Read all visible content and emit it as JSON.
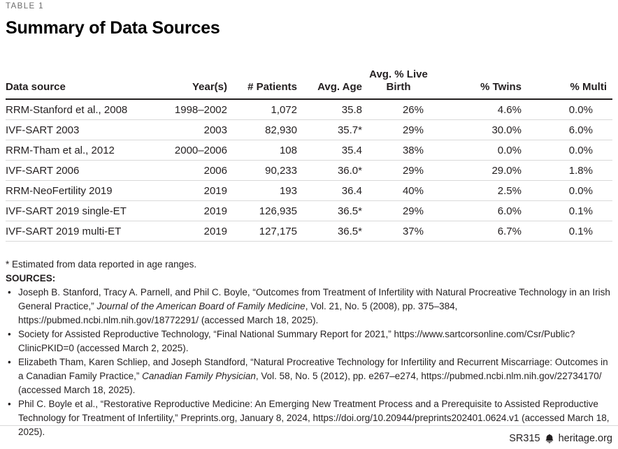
{
  "page": {
    "table_label": "TABLE 1",
    "title": "Summary of Data Sources"
  },
  "table": {
    "columns": [
      {
        "key": "data-source",
        "label": "Data source",
        "align": "left"
      },
      {
        "key": "years",
        "label": "Year(s)",
        "align": "right"
      },
      {
        "key": "patients",
        "label": "# Patients",
        "align": "right"
      },
      {
        "key": "avg-age",
        "label": "Avg. Age",
        "align": "right"
      },
      {
        "key": "avg-live-birth",
        "label": "Avg. % Live Birth",
        "lines": [
          "Avg. % Live",
          "Birth"
        ],
        "align": "center"
      },
      {
        "key": "twins",
        "label": "% Twins",
        "align": "right"
      },
      {
        "key": "multi",
        "label": "% Multi",
        "align": "right"
      }
    ],
    "rows": [
      [
        "RRM-Stanford et al., 2008",
        "1998–2002",
        "1,072",
        "35.8",
        "26%",
        "4.6%",
        "0.0%"
      ],
      [
        "IVF-SART 2003",
        "2003",
        "82,930",
        "35.7*",
        "29%",
        "30.0%",
        "6.0%"
      ],
      [
        "RRM-Tham et al., 2012",
        "2000–2006",
        "108",
        "35.4",
        "38%",
        "0.0%",
        "0.0%"
      ],
      [
        "IVF-SART 2006",
        "2006",
        "90,233",
        "36.0*",
        "29%",
        "29.0%",
        "1.8%"
      ],
      [
        "RRM-NeoFertility 2019",
        "2019",
        "193",
        "36.4",
        "40%",
        "2.5%",
        "0.0%"
      ],
      [
        "IVF-SART 2019 single-ET",
        "2019",
        "126,935",
        "36.5*",
        "29%",
        "6.0%",
        "0.1%"
      ],
      [
        "IVF-SART 2019 multi-ET",
        "2019",
        "127,175",
        "36.5*",
        "37%",
        "6.7%",
        "0.1%"
      ]
    ]
  },
  "chart_data": {
    "type": "table",
    "title": "Summary of Data Sources",
    "categories": [
      "RRM-Stanford et al., 2008",
      "IVF-SART 2003",
      "RRM-Tham et al., 2012",
      "IVF-SART 2006",
      "RRM-NeoFertility 2019",
      "IVF-SART 2019 single-ET",
      "IVF-SART 2019 multi-ET"
    ],
    "series": [
      {
        "name": "Year(s)",
        "values": [
          "1998–2002",
          "2003",
          "2000–2006",
          "2006",
          "2019",
          "2019",
          "2019"
        ]
      },
      {
        "name": "# Patients",
        "values": [
          1072,
          82930,
          108,
          90233,
          193,
          126935,
          127175
        ]
      },
      {
        "name": "Avg. Age",
        "values": [
          35.8,
          35.7,
          35.4,
          36.0,
          36.4,
          36.5,
          36.5
        ]
      },
      {
        "name": "Avg. % Live Birth",
        "values": [
          26,
          29,
          38,
          29,
          40,
          29,
          37
        ]
      },
      {
        "name": "% Twins",
        "values": [
          4.6,
          30.0,
          0.0,
          29.0,
          2.5,
          6.0,
          6.7
        ]
      },
      {
        "name": "% Multi",
        "values": [
          0.0,
          6.0,
          0.0,
          1.8,
          0.0,
          0.1,
          0.1
        ]
      }
    ]
  },
  "notes": {
    "footnote": "* Estimated from data reported in age ranges.",
    "sources_label": "SOURCES:",
    "sources": [
      {
        "parts": [
          {
            "t": "Joseph B. Stanford, Tracy A. Parnell, and Phil C. Boyle, “Outcomes from Treatment of Infertility with Natural Procreative Technology in an Irish General Practice,” "
          },
          {
            "t": "Journal of the American Board of Family Medicine",
            "i": true
          },
          {
            "t": ", Vol. 21, No. 5 (2008), pp. 375–384, https://pubmed.ncbi.nlm.nih.gov/18772291/ (accessed March 18, 2025)."
          }
        ]
      },
      {
        "parts": [
          {
            "t": "Society for Assisted Reproductive Technology, “Final National Summary Report for 2021,” https://www.sartcorsonline.com/Csr/Public?ClinicPKID=0 (accessed March 2, 2025)."
          }
        ]
      },
      {
        "parts": [
          {
            "t": "Elizabeth Tham, Karen Schliep, and Joseph Standford, “Natural Procreative Technology for Infertility and Recurrent Miscarriage: Outcomes in a Canadian Family Practice,” "
          },
          {
            "t": "Canadian Family Physician",
            "i": true
          },
          {
            "t": ", Vol. 58, No. 5 (2012), pp. e267–e274, https://pubmed.ncbi.nlm.nih.gov/22734170/ (accessed March 18, 2025)."
          }
        ]
      },
      {
        "parts": [
          {
            "t": "Phil C. Boyle et al., “Restorative Reproductive Medicine: An Emerging New Treatment Process and a Prerequisite to Assisted Reproductive Technology for Treatment of Infertility,” Preprints.org, January 8, 2024, https://doi.org/10.20944/preprints202401.0624.v1 (accessed March 18, 2025)."
          }
        ]
      }
    ]
  },
  "footer": {
    "report_id": "SR315",
    "site": "heritage.org",
    "icon": "liberty-bell-icon"
  },
  "colors": {
    "text": "#231f20",
    "muted_label": "#6b6b6b",
    "row_divider": "#d9d9d9",
    "header_rule": "#231f20"
  }
}
